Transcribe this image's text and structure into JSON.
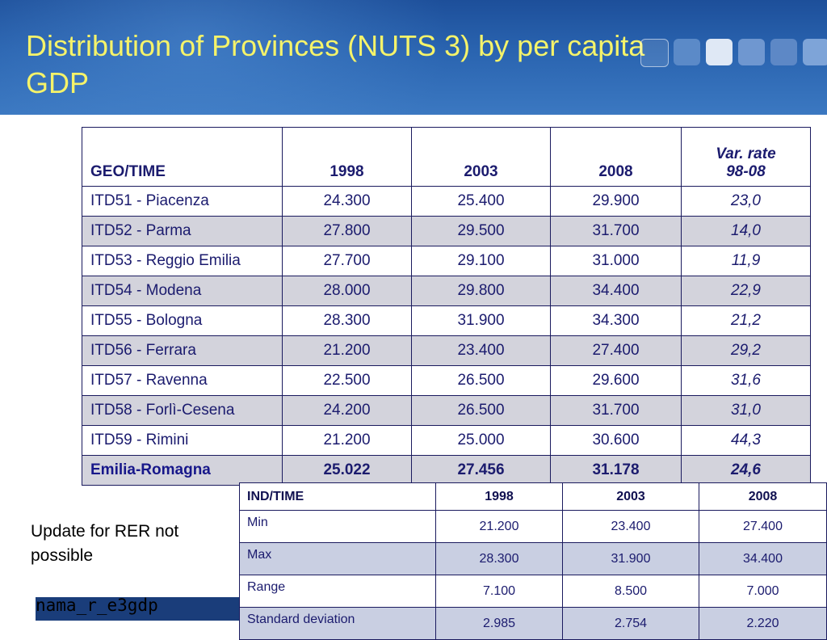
{
  "slide": {
    "title": "Distribution of Provinces (NUTS 3) by per capita GDP",
    "note": "Update for RER not possible",
    "source": "nama_r_e3gdp"
  },
  "main_table": {
    "headers": {
      "geo": "GEO/TIME",
      "y1998": "1998",
      "y2003": "2003",
      "y2008": "2008",
      "var_line1": "Var. rate",
      "var_line2": "98-08"
    },
    "rows": [
      {
        "geo": "ITD51 - Piacenza",
        "y1998": "24.300",
        "y2003": "25.400",
        "y2008": "29.900",
        "var": "23,0"
      },
      {
        "geo": "ITD52 - Parma",
        "y1998": "27.800",
        "y2003": "29.500",
        "y2008": "31.700",
        "var": "14,0"
      },
      {
        "geo": "ITD53 - Reggio Emilia",
        "y1998": "27.700",
        "y2003": "29.100",
        "y2008": "31.000",
        "var": "11,9"
      },
      {
        "geo": "ITD54 - Modena",
        "y1998": "28.000",
        "y2003": "29.800",
        "y2008": "34.400",
        "var": "22,9"
      },
      {
        "geo": "ITD55 - Bologna",
        "y1998": "28.300",
        "y2003": "31.900",
        "y2008": "34.300",
        "var": "21,2"
      },
      {
        "geo": "ITD56 - Ferrara",
        "y1998": "21.200",
        "y2003": "23.400",
        "y2008": "27.400",
        "var": "29,2"
      },
      {
        "geo": "ITD57 - Ravenna",
        "y1998": "22.500",
        "y2003": "26.500",
        "y2008": "29.600",
        "var": "31,6"
      },
      {
        "geo": "ITD58 - Forlì-Cesena",
        "y1998": "24.200",
        "y2003": "26.500",
        "y2008": "31.700",
        "var": "31,0"
      },
      {
        "geo": "ITD59 - Rimini",
        "y1998": "21.200",
        "y2003": "25.000",
        "y2008": "30.600",
        "var": "44,3"
      },
      {
        "geo": "Emilia-Romagna",
        "y1998": "25.022",
        "y2003": "27.456",
        "y2008": "31.178",
        "var": "24,6"
      }
    ]
  },
  "stats_table": {
    "headers": {
      "ind": "IND/TIME",
      "y1998": "1998",
      "y2003": "2003",
      "y2008": "2008"
    },
    "rows": [
      {
        "ind": "Min",
        "y1998": "21.200",
        "y2003": "23.400",
        "y2008": "27.400"
      },
      {
        "ind": "Max",
        "y1998": "28.300",
        "y2003": "31.900",
        "y2008": "34.400"
      },
      {
        "ind": "Range",
        "y1998": "7.100",
        "y2003": "8.500",
        "y2008": "7.000"
      },
      {
        "ind": "Standard deviation",
        "y1998": "2.985",
        "y2003": "2.754",
        "y2008": "2.220"
      }
    ]
  },
  "colors": {
    "header_blue": "#2a64b0",
    "title_yellow": "#f5f36a",
    "table_text": "#1b1b6e",
    "alt_row_gray": "#d3d3dc",
    "alt_row_blue": "#c9cfe2",
    "source_bar": "#1a3d7a"
  }
}
